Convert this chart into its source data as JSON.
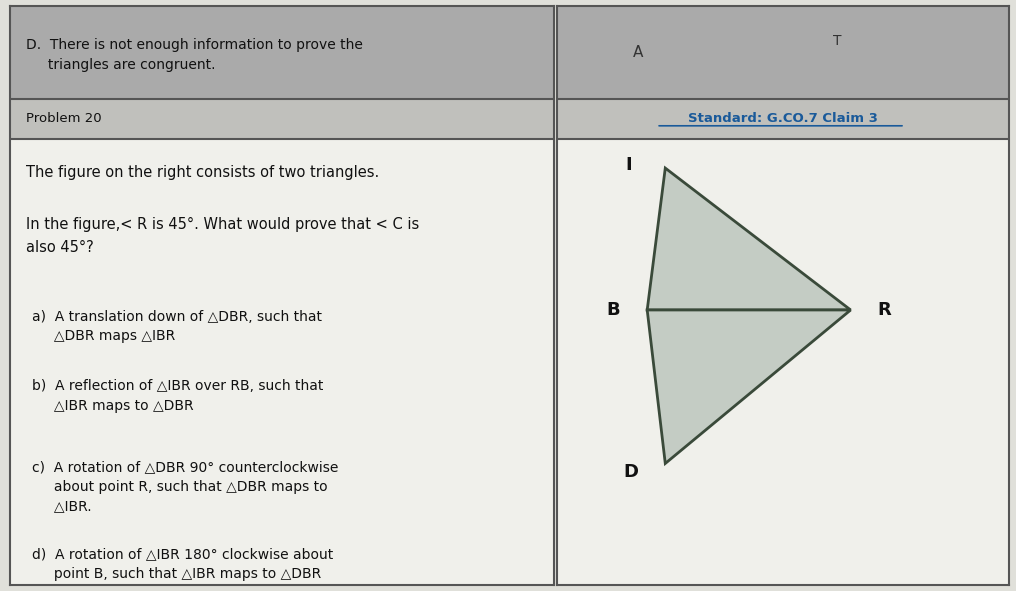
{
  "bg_color": "#e0e0da",
  "cell_bg": "#f0f0eb",
  "header_bg": "#aaaaaa",
  "problem_header_bg": "#c0c0bc",
  "header_text": "D.  There is not enough information to prove the\n     triangles are congruent.",
  "standard_text": "Standard: G.CO.7 Claim 3",
  "problem_label": "Problem 20",
  "problem_text": "The figure on the right consists of two triangles.",
  "problem_text2": "In the figure,< R is 45°. What would prove that < C is\nalso 45°?",
  "choices": [
    "a)  A translation down of △DBR, such that\n     △DBR maps △IBR",
    "b)  A reflection of △IBR over RB, such that\n     △IBR maps to △DBR",
    "c)  A rotation of △DBR 90° counterclockwise\n     about point R, such that △DBR maps to\n     △IBR.",
    "d)  A rotation of △IBR 180° clockwise about\n     point B, such that △IBR maps to △DBR"
  ],
  "triangle_fill": "#c4ccc4",
  "triangle_edge": "#3a4a3a",
  "label_I": "I",
  "label_B": "B",
  "label_R": "R",
  "label_D": "D",
  "label_A": "A",
  "label_T": "T",
  "fig_width": 10.16,
  "fig_height": 5.91,
  "standard_color": "#1a5a9a"
}
